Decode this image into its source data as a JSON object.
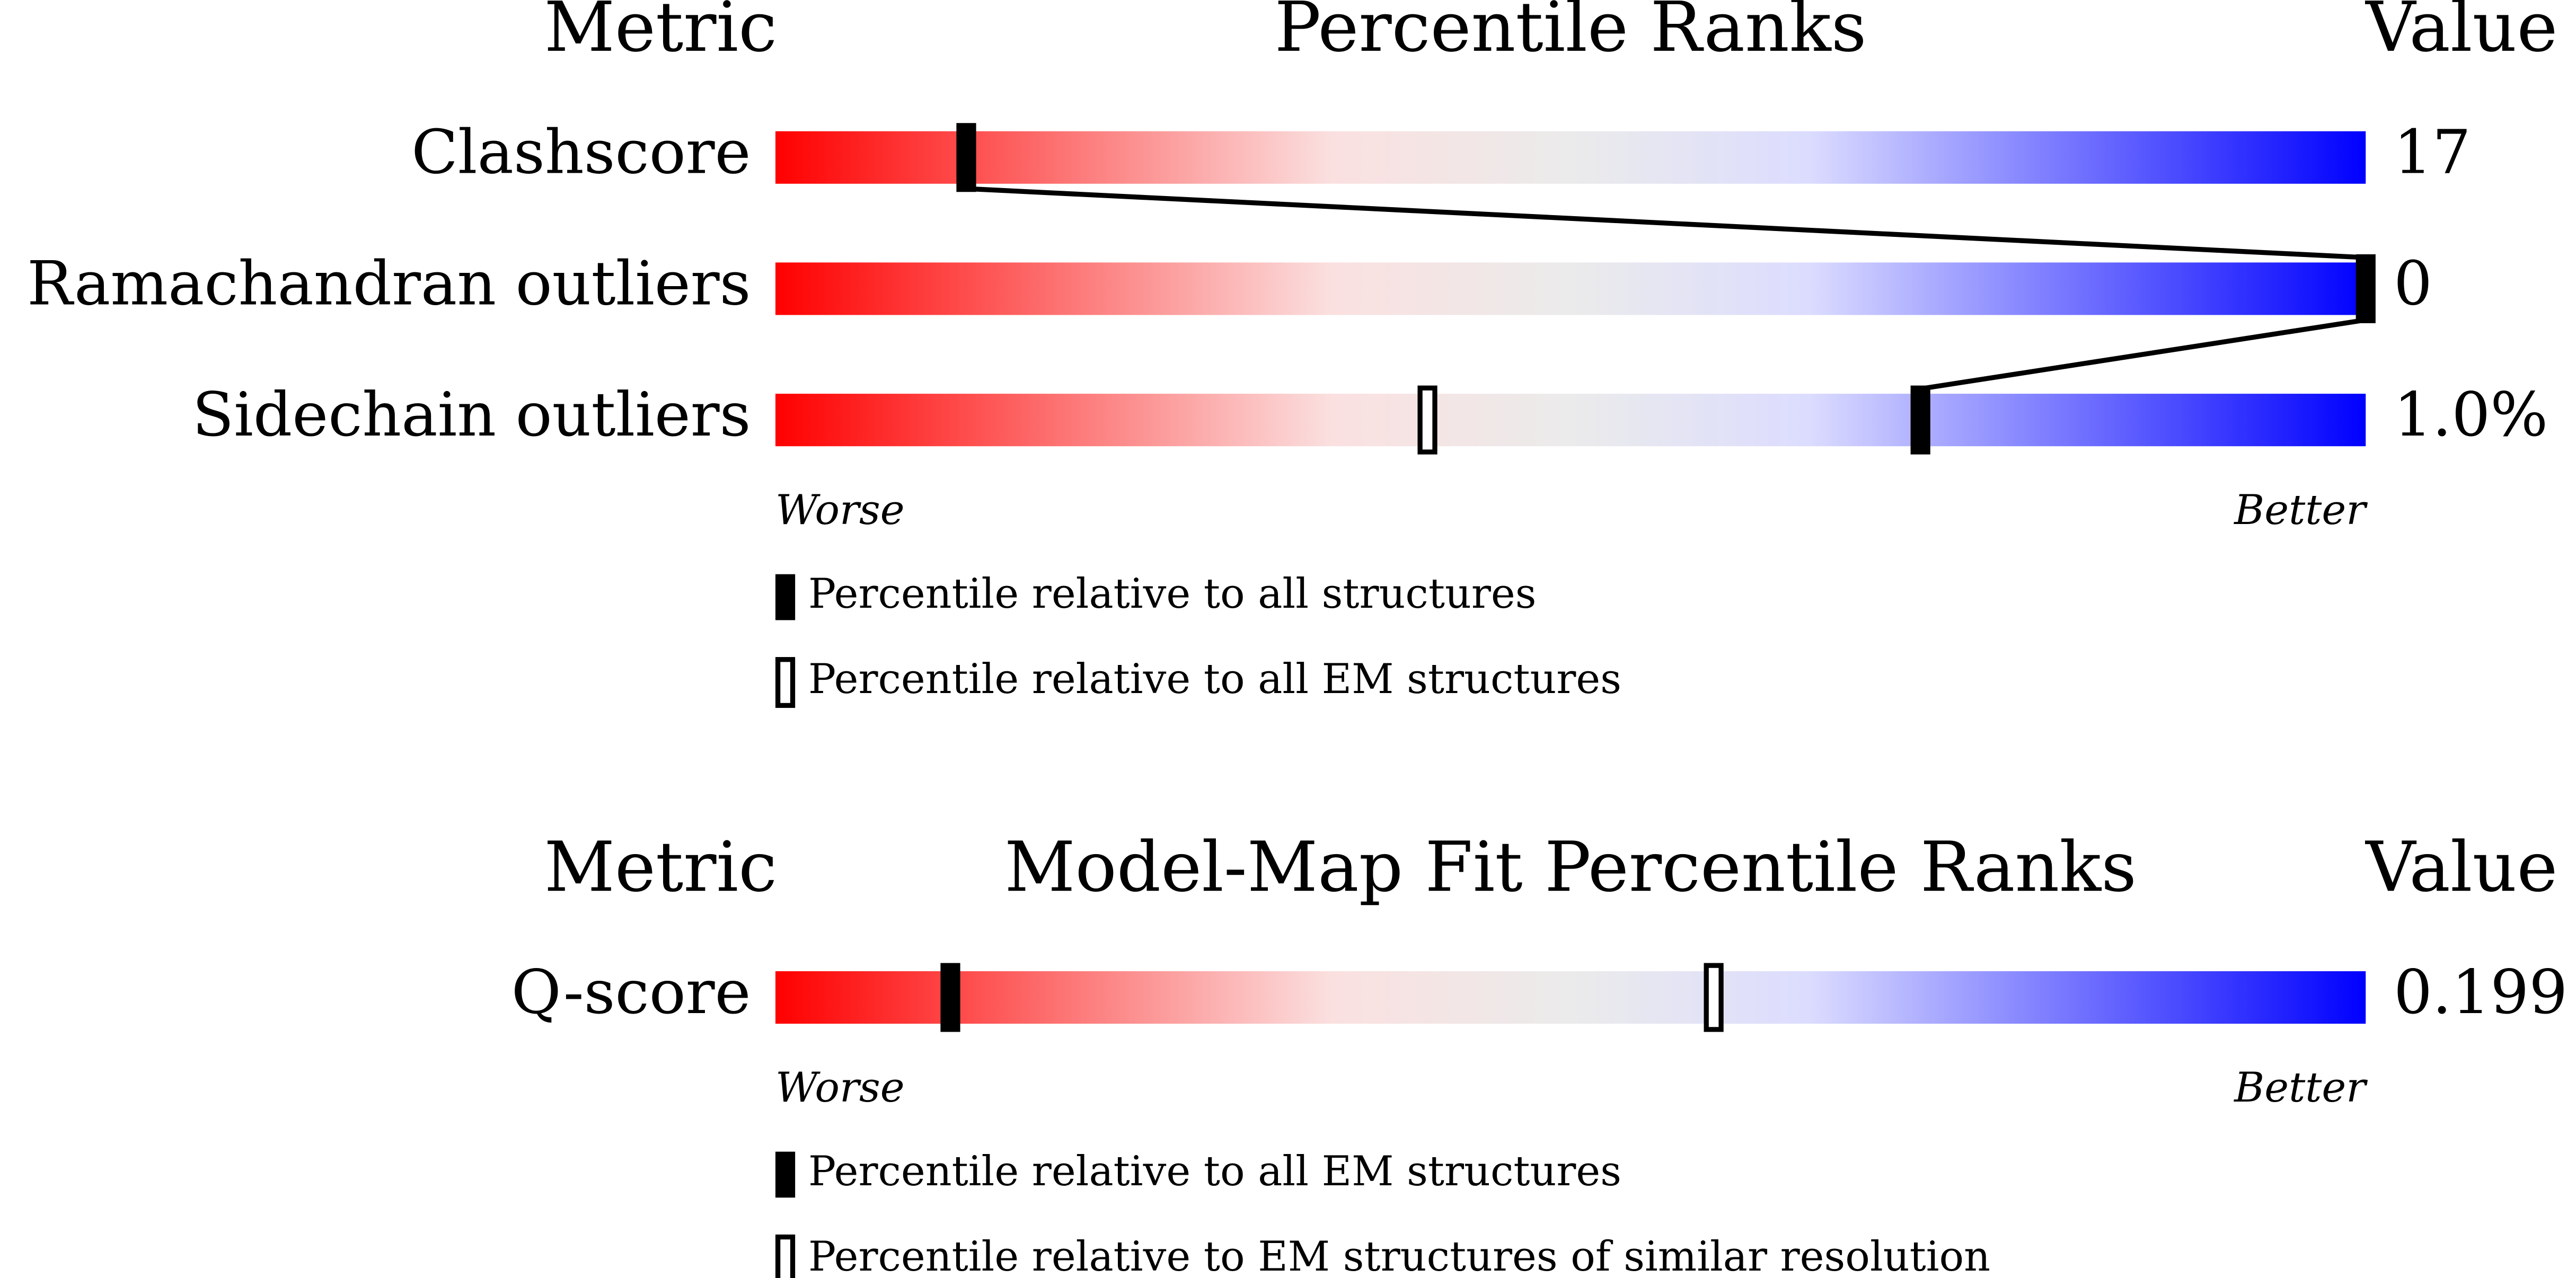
{
  "chart_data": [
    {
      "type": "percentile",
      "metric_header": "Metric",
      "title": "Percentile Ranks",
      "value_header": "Value",
      "categories": [
        "Clashscore",
        "Ramachandran outliers",
        "Sidechain outliers"
      ],
      "value_texts": [
        "17",
        "0",
        "1.0%"
      ],
      "xlim": [
        0,
        100
      ],
      "series": [
        {
          "name": "Percentile relative to all structures",
          "style": "filled",
          "values": [
            12,
            100,
            72
          ]
        },
        {
          "name": "Percentile relative to all EM structures",
          "style": "outline",
          "values": [
            null,
            null,
            41
          ]
        }
      ],
      "connect_series": 0,
      "low_label": "Worse",
      "high_label": "Better"
    },
    {
      "type": "percentile",
      "metric_header": "Metric",
      "title": "Model-Map Fit Percentile Ranks",
      "value_header": "Value",
      "categories": [
        "Q-score"
      ],
      "value_texts": [
        "0.199"
      ],
      "xlim": [
        0,
        100
      ],
      "series": [
        {
          "name": "Percentile relative to all EM structures",
          "style": "filled",
          "values": [
            11
          ]
        },
        {
          "name": "Percentile relative to EM structures of similar resolution",
          "style": "outline",
          "values": [
            59
          ]
        }
      ],
      "low_label": "Worse",
      "high_label": "Better"
    }
  ]
}
